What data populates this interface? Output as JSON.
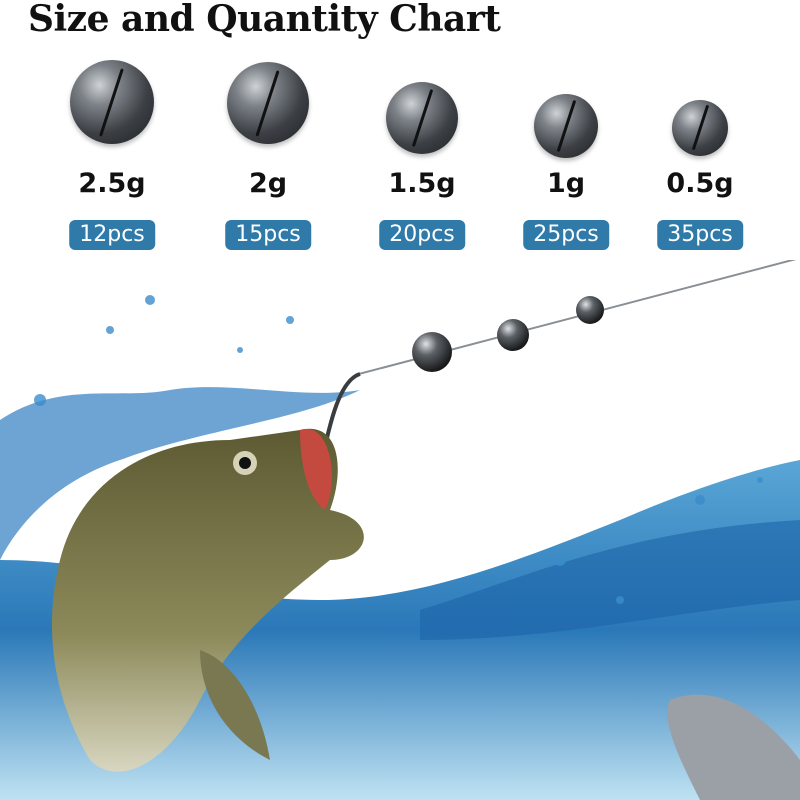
{
  "title": "Size and Quantity Chart",
  "accent_color": "#2f7aa8",
  "items": [
    {
      "weight": "2.5g",
      "quantity": "12pcs"
    },
    {
      "weight": "2g",
      "quantity": "15pcs"
    },
    {
      "weight": "1.5g",
      "quantity": "20pcs"
    },
    {
      "weight": "1g",
      "quantity": "25pcs"
    },
    {
      "weight": "0.5g",
      "quantity": "35pcs"
    }
  ]
}
